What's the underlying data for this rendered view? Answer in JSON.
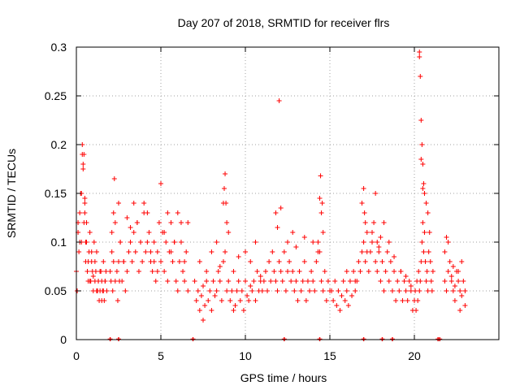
{
  "chart_data": {
    "type": "scatter",
    "title": "Day 207 of 2018, SRMTID for receiver flrs",
    "xlabel": "GPS time / hours",
    "ylabel": "SRMTID / TECUs",
    "xlim": [
      0,
      25
    ],
    "ylim": [
      0,
      0.3
    ],
    "xticks": [
      0,
      5,
      10,
      15,
      20
    ],
    "xtick_labels": [
      "0",
      "5",
      "10",
      "15",
      "20"
    ],
    "yticks": [
      0,
      0.05,
      0.1,
      0.15,
      0.2,
      0.25,
      0.3
    ],
    "ytick_labels": [
      "0",
      "0.05",
      "0.1",
      "0.15",
      "0.2",
      "0.25",
      "0.3"
    ],
    "grid": true,
    "marker": "plus",
    "color": "#ff0000",
    "series": [
      {
        "name": "SRMTID",
        "x": [
          0.0,
          0.05,
          0.1,
          0.15,
          0.2,
          0.25,
          0.3,
          0.35,
          0.4,
          0.45,
          0.5,
          0.55,
          0.6,
          0.65,
          0.7,
          0.75,
          0.8,
          0.85,
          0.9,
          0.95,
          1.0,
          1.05,
          1.1,
          1.15,
          1.2,
          1.25,
          1.3,
          1.35,
          1.4,
          1.45,
          1.5,
          1.55,
          1.6,
          1.65,
          1.7,
          1.75,
          1.8,
          0.1,
          0.2,
          0.3,
          0.35,
          0.4,
          0.45,
          0.5,
          0.5,
          0.55,
          0.6,
          0.7,
          0.8,
          0.9,
          1.0,
          1.1,
          1.2,
          1.3,
          1.4,
          1.5,
          1.6,
          1.7,
          2.0,
          2.05,
          2.1,
          2.15,
          2.2,
          2.3,
          2.4,
          2.45,
          2.5,
          2.55,
          2.6,
          2.7,
          2.8,
          2.9,
          3.0,
          3.1,
          3.2,
          3.3,
          3.4,
          3.5,
          3.6,
          3.7,
          3.8,
          3.9,
          4.0,
          4.1,
          4.2,
          4.3,
          4.4,
          4.5,
          4.6,
          4.7,
          4.8,
          4.9,
          5.0,
          5.1,
          5.2,
          5.3,
          5.4,
          5.5,
          5.6,
          5.7,
          5.8,
          5.9,
          6.0,
          6.1,
          6.2,
          6.3,
          6.4,
          6.5,
          6.6,
          2.1,
          2.2,
          2.25,
          2.3,
          2.5,
          2.6,
          2.8,
          3.0,
          3.2,
          3.4,
          3.6,
          3.8,
          4.0,
          4.2,
          4.4,
          4.6,
          4.8,
          5.0,
          5.2,
          5.4,
          5.6,
          5.8,
          6.0,
          6.2,
          6.4,
          6.6,
          7.0,
          7.1,
          7.2,
          7.3,
          7.4,
          7.5,
          7.6,
          7.7,
          7.8,
          7.9,
          8.0,
          8.1,
          8.2,
          8.3,
          8.4,
          8.5,
          8.6,
          8.7,
          8.8,
          8.9,
          9.0,
          9.1,
          9.2,
          9.3,
          9.4,
          9.5,
          9.6,
          9.7,
          9.8,
          9.9,
          10.0,
          10.1,
          10.2,
          10.3,
          10.4,
          10.5,
          10.6,
          10.7,
          10.8,
          10.9,
          11.0,
          8.7,
          8.75,
          8.8,
          8.85,
          8.9,
          7.3,
          7.5,
          7.7,
          8.0,
          8.3,
          8.5,
          9.0,
          9.3,
          9.6,
          10.0,
          10.3,
          10.6,
          10.9,
          11.1,
          11.2,
          11.3,
          11.4,
          11.5,
          11.6,
          11.7,
          11.8,
          11.9,
          12.0,
          12.1,
          12.2,
          12.3,
          12.4,
          12.5,
          12.6,
          12.7,
          12.8,
          12.9,
          13.0,
          13.1,
          13.2,
          13.3,
          13.4,
          13.5,
          13.6,
          13.7,
          13.8,
          13.9,
          14.0,
          14.1,
          14.2,
          14.3,
          14.4,
          14.5,
          14.6,
          14.7,
          14.8,
          14.9,
          15.0,
          11.8,
          11.9,
          12.0,
          12.1,
          12.5,
          12.8,
          13.0,
          13.5,
          14.0,
          14.3,
          14.4,
          14.45,
          14.5,
          14.55,
          14.6,
          15.1,
          15.2,
          15.3,
          15.4,
          15.5,
          15.6,
          15.7,
          15.8,
          15.9,
          16.0,
          16.1,
          16.2,
          16.3,
          16.4,
          16.5,
          16.6,
          16.7,
          16.8,
          16.9,
          17.0,
          17.1,
          17.2,
          17.3,
          17.4,
          17.5,
          17.6,
          17.7,
          17.8,
          17.9,
          18.0,
          18.1,
          18.2,
          18.3,
          18.4,
          18.5,
          18.6,
          18.7,
          18.8,
          18.9,
          19.0,
          19.1,
          19.2,
          19.3,
          19.4,
          19.5,
          19.6,
          19.7,
          19.8,
          19.9,
          16.9,
          17.0,
          17.05,
          17.1,
          17.5,
          17.7,
          17.8,
          17.9,
          18.0,
          16.0,
          16.5,
          17.2,
          18.2,
          18.5,
          18.8,
          19.2,
          19.5,
          19.8,
          20.0,
          20.05,
          20.1,
          20.15,
          20.2,
          20.25,
          20.3,
          20.35,
          20.4,
          20.45,
          20.5,
          20.55,
          20.6,
          20.65,
          20.7,
          20.75,
          20.8,
          20.85,
          20.9,
          20.95,
          21.0,
          21.05,
          21.1,
          20.3,
          20.35,
          20.4,
          20.45,
          20.5,
          20.55,
          20.6,
          20.7,
          20.8,
          20.3,
          20.4,
          20.5,
          21.8,
          21.9,
          22.0,
          22.1,
          22.2,
          22.3,
          22.4,
          22.5,
          22.6,
          22.7,
          22.8,
          22.9,
          23.0,
          21.8,
          22.0,
          22.2,
          22.4,
          22.6,
          22.8,
          23.0,
          21.9,
          22.3,
          22.7
        ],
        "y": [
          0.07,
          0.05,
          0.11,
          0.09,
          0.13,
          0.15,
          0.1,
          0.19,
          0.18,
          0.12,
          0.14,
          0.08,
          0.1,
          0.07,
          0.06,
          0.09,
          0.11,
          0.06,
          0.08,
          0.07,
          0.05,
          0.1,
          0.06,
          0.07,
          0.09,
          0.05,
          0.06,
          0.04,
          0.05,
          0.07,
          0.06,
          0.05,
          0.08,
          0.04,
          0.06,
          0.07,
          0.05,
          0.12,
          0.1,
          0.15,
          0.2,
          0.175,
          0.19,
          0.13,
          0.145,
          0.1,
          0.12,
          0.08,
          0.06,
          0.09,
          0.065,
          0.08,
          0.05,
          0.06,
          0.07,
          0.04,
          0.05,
          0.06,
          0.07,
          0.06,
          0.09,
          0.05,
          0.08,
          0.06,
          0.07,
          0.04,
          0.08,
          0.06,
          0.1,
          0.06,
          0.08,
          0.05,
          0.07,
          0.09,
          0.1,
          0.08,
          0.11,
          0.09,
          0.12,
          0.07,
          0.1,
          0.08,
          0.13,
          0.09,
          0.1,
          0.11,
          0.08,
          0.07,
          0.1,
          0.06,
          0.09,
          0.12,
          0.08,
          0.11,
          0.07,
          0.1,
          0.06,
          0.09,
          0.12,
          0.08,
          0.1,
          0.06,
          0.05,
          0.08,
          0.1,
          0.07,
          0.06,
          0.09,
          0.05,
          0.11,
          0.13,
          0.165,
          0.12,
          0.14,
          0.1,
          0.08,
          0.125,
          0.115,
          0.14,
          0.12,
          0.1,
          0.14,
          0.13,
          0.09,
          0.08,
          0.07,
          0.16,
          0.11,
          0.13,
          0.09,
          0.1,
          0.13,
          0.12,
          0.08,
          0.12,
          0.06,
          0.04,
          0.05,
          0.03,
          0.045,
          0.055,
          0.035,
          0.06,
          0.04,
          0.05,
          0.03,
          0.06,
          0.045,
          0.05,
          0.07,
          0.06,
          0.04,
          0.08,
          0.09,
          0.05,
          0.06,
          0.04,
          0.05,
          0.07,
          0.035,
          0.05,
          0.06,
          0.04,
          0.05,
          0.03,
          0.06,
          0.045,
          0.04,
          0.055,
          0.05,
          0.06,
          0.04,
          0.07,
          0.05,
          0.06,
          0.05,
          0.14,
          0.155,
          0.17,
          0.14,
          0.12,
          0.08,
          0.02,
          0.07,
          0.09,
          0.1,
          0.075,
          0.11,
          0.03,
          0.085,
          0.09,
          0.08,
          0.1,
          0.065,
          0.06,
          0.07,
          0.05,
          0.08,
          0.06,
          0.09,
          0.07,
          0.06,
          0.05,
          0.08,
          0.07,
          0.06,
          0.09,
          0.05,
          0.07,
          0.08,
          0.06,
          0.07,
          0.05,
          0.06,
          0.04,
          0.07,
          0.05,
          0.06,
          0.08,
          0.04,
          0.06,
          0.05,
          0.07,
          0.06,
          0.05,
          0.08,
          0.1,
          0.09,
          0.06,
          0.05,
          0.07,
          0.04,
          0.06,
          0.05,
          0.13,
          0.115,
          0.245,
          0.135,
          0.1,
          0.11,
          0.095,
          0.105,
          0.1,
          0.09,
          0.145,
          0.168,
          0.13,
          0.14,
          0.11,
          0.05,
          0.04,
          0.06,
          0.035,
          0.05,
          0.03,
          0.045,
          0.06,
          0.04,
          0.05,
          0.035,
          0.06,
          0.045,
          0.07,
          0.05,
          0.06,
          0.08,
          0.07,
          0.09,
          0.1,
          0.08,
          0.11,
          0.07,
          0.09,
          0.1,
          0.12,
          0.08,
          0.07,
          0.09,
          0.06,
          0.08,
          0.05,
          0.07,
          0.09,
          0.06,
          0.08,
          0.05,
          0.07,
          0.04,
          0.06,
          0.05,
          0.07,
          0.04,
          0.06,
          0.05,
          0.04,
          0.06,
          0.05,
          0.03,
          0.14,
          0.155,
          0.13,
          0.12,
          0.11,
          0.15,
          0.1,
          0.095,
          0.105,
          0.07,
          0.06,
          0.09,
          0.12,
          0.1,
          0.085,
          0.07,
          0.065,
          0.055,
          0.04,
          0.05,
          0.03,
          0.06,
          0.04,
          0.07,
          0.05,
          0.06,
          0.08,
          0.1,
          0.12,
          0.09,
          0.11,
          0.08,
          0.06,
          0.07,
          0.05,
          0.09,
          0.11,
          0.08,
          0.06,
          0.05,
          0.07,
          0.29,
          0.27,
          0.225,
          0.2,
          0.18,
          0.16,
          0.15,
          0.14,
          0.13,
          0.295,
          0.185,
          0.155,
          0.06,
          0.05,
          0.07,
          0.08,
          0.06,
          0.05,
          0.04,
          0.07,
          0.06,
          0.05,
          0.08,
          0.06,
          0.05,
          0.09,
          0.1,
          0.065,
          0.055,
          0.07,
          0.045,
          0.035,
          0.105,
          0.075,
          0.03
        ]
      }
    ],
    "gap_markers_x": [
      2.0,
      2.5,
      6.9,
      12.3,
      14.4,
      17.0,
      18.1,
      18.7,
      21.4,
      21.5
    ]
  }
}
